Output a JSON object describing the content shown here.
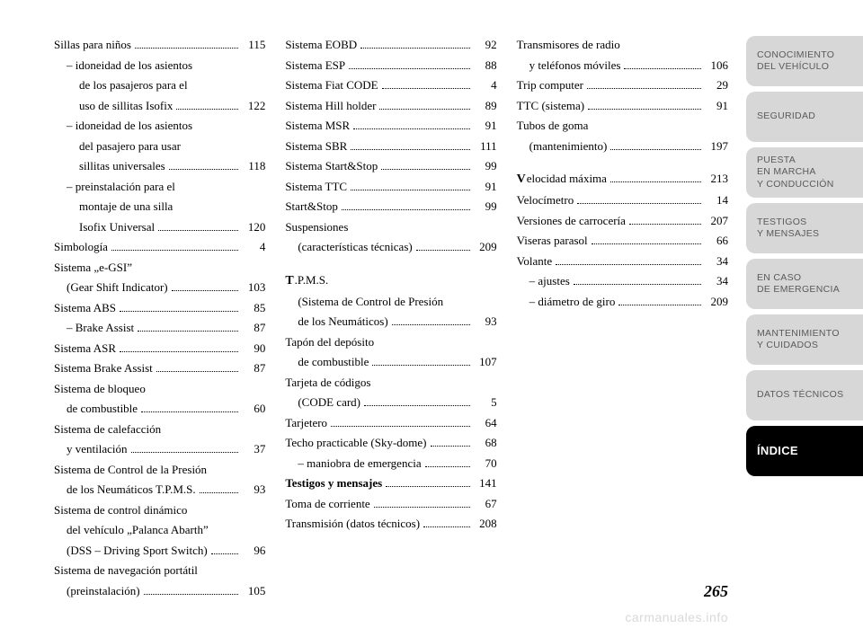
{
  "page_number": "265",
  "watermark": "carmanuales.info",
  "sidebar": {
    "tabs": [
      {
        "l1": "CONOCIMIENTO",
        "l2": "DEL VEHÍCULO"
      },
      {
        "l1": "SEGURIDAD",
        "l2": ""
      },
      {
        "l1": "PUESTA",
        "l2": "EN MARCHA",
        "l3": "Y CONDUCCIÓN"
      },
      {
        "l1": "TESTIGOS",
        "l2": "Y MENSAJES"
      },
      {
        "l1": "EN CASO",
        "l2": "DE EMERGENCIA"
      },
      {
        "l1": "MANTENIMIENTO",
        "l2": "Y CUIDADOS"
      },
      {
        "l1": "DATOS TÉCNICOS",
        "l2": ""
      }
    ],
    "active": {
      "label": "ÍNDICE"
    },
    "bg_color": "#d7d7d7",
    "text_color": "#5a5a5a"
  },
  "columns": [
    [
      {
        "lines": [
          "Sillas para niños"
        ],
        "page": "115"
      },
      {
        "lines": [
          "– idoneidad de los asientos",
          "de los pasajeros para el",
          "uso de sillitas Isofix"
        ],
        "page": "122",
        "indent": 1
      },
      {
        "lines": [
          "– idoneidad de los asientos",
          "del pasajero para usar",
          "sillitas universales"
        ],
        "page": "118",
        "indent": 1
      },
      {
        "lines": [
          "– preinstalación para el",
          "montaje de una silla",
          "Isofix Universal"
        ],
        "page": "120",
        "indent": 1
      },
      {
        "lines": [
          "Simbología"
        ],
        "page": "4"
      },
      {
        "lines": [
          "Sistema „e-GSI”",
          "(Gear Shift Indicator)"
        ],
        "page": "103"
      },
      {
        "lines": [
          "Sistema ABS"
        ],
        "page": "85"
      },
      {
        "lines": [
          "– Brake Assist"
        ],
        "page": "87",
        "indent": 1
      },
      {
        "lines": [
          "Sistema ASR"
        ],
        "page": "90"
      },
      {
        "lines": [
          "Sistema Brake Assist"
        ],
        "page": "87"
      },
      {
        "lines": [
          "Sistema de bloqueo",
          "de combustible"
        ],
        "page": "60"
      },
      {
        "lines": [
          "Sistema de calefacción",
          "y ventilación"
        ],
        "page": "37"
      },
      {
        "lines": [
          "Sistema de Control de la Presión",
          "de los Neumáticos T.P.M.S."
        ],
        "page": "93"
      },
      {
        "lines": [
          "Sistema de control dinámico",
          "del vehículo „Palanca Abarth”",
          "(DSS – Driving Sport Switch)"
        ],
        "page": "96"
      },
      {
        "lines": [
          "Sistema de navegación portátil",
          "(preinstalación)"
        ],
        "page": "105"
      }
    ],
    [
      {
        "lines": [
          "Sistema EOBD"
        ],
        "page": "92"
      },
      {
        "lines": [
          "Sistema ESP"
        ],
        "page": "88"
      },
      {
        "lines": [
          "Sistema Fiat CODE"
        ],
        "page": "4"
      },
      {
        "lines": [
          "Sistema Hill holder"
        ],
        "page": "89"
      },
      {
        "lines": [
          "Sistema MSR"
        ],
        "page": "91"
      },
      {
        "lines": [
          "Sistema SBR"
        ],
        "page": "111"
      },
      {
        "lines": [
          "Sistema Start&Stop"
        ],
        "page": "99"
      },
      {
        "lines": [
          "Sistema TTC"
        ],
        "page": "91"
      },
      {
        "lines": [
          "Start&Stop"
        ],
        "page": "99"
      },
      {
        "lines": [
          "Suspensiones",
          "(características técnicas)"
        ],
        "page": "209"
      },
      {
        "lead": "T",
        "lines": [
          ".P.M.S.",
          "(Sistema de Control de Presión",
          "de los Neumáticos)"
        ],
        "page": "93",
        "gap_before": true
      },
      {
        "lines": [
          "Tapón del depósito",
          "de combustible"
        ],
        "page": "107"
      },
      {
        "lines": [
          "Tarjeta de códigos",
          "(CODE card)"
        ],
        "page": "5"
      },
      {
        "lines": [
          "Tarjetero"
        ],
        "page": "64"
      },
      {
        "lines": [
          "Techo practicable (Sky-dome)"
        ],
        "page": "68"
      },
      {
        "lines": [
          "– maniobra de emergencia"
        ],
        "page": "70",
        "indent": 1
      },
      {
        "lines": [
          "Testigos y mensajes"
        ],
        "page": "141",
        "bold": true
      },
      {
        "lines": [
          "Toma de corriente"
        ],
        "page": "67"
      },
      {
        "lines": [
          "Transmisión (datos técnicos)"
        ],
        "page": "208"
      }
    ],
    [
      {
        "lines": [
          "Transmisores de radio",
          "y teléfonos móviles"
        ],
        "page": "106"
      },
      {
        "lines": [
          "Trip computer"
        ],
        "page": "29"
      },
      {
        "lines": [
          "TTC (sistema)"
        ],
        "page": "91"
      },
      {
        "lines": [
          "Tubos de goma",
          "(mantenimiento)"
        ],
        "page": "197"
      },
      {
        "lead": "V",
        "lines": [
          "elocidad máxima"
        ],
        "page": "213",
        "gap_before": true
      },
      {
        "lines": [
          "Velocímetro"
        ],
        "page": "14"
      },
      {
        "lines": [
          "Versiones de carrocería"
        ],
        "page": "207"
      },
      {
        "lines": [
          "Viseras parasol"
        ],
        "page": "66"
      },
      {
        "lines": [
          "Volante"
        ],
        "page": "34"
      },
      {
        "lines": [
          "– ajustes"
        ],
        "page": "34",
        "indent": 1
      },
      {
        "lines": [
          "– diámetro de giro"
        ],
        "page": "209",
        "indent": 1
      }
    ]
  ]
}
